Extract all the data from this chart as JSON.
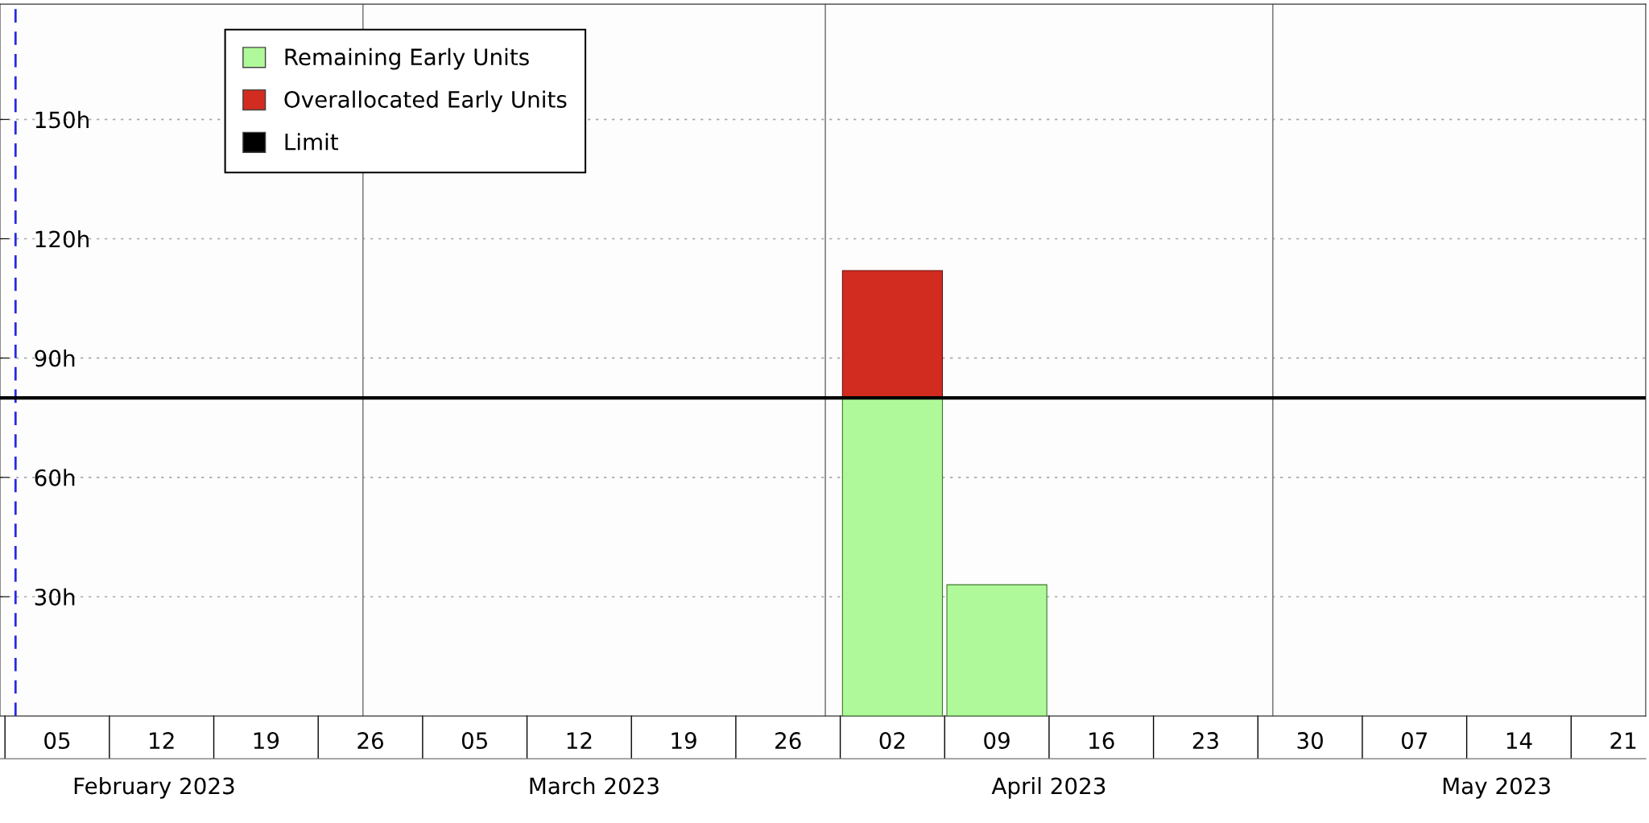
{
  "chart_data": {
    "type": "bar",
    "stacked": true,
    "x": [
      "2023-04-05T12:00",
      "2023-04-12T12:00"
    ],
    "series": [
      {
        "name": "Remaining Early Units",
        "color": "#b0f99a",
        "values": [
          80,
          33
        ]
      },
      {
        "name": "Overallocated Early Units",
        "color": "#d22b1f",
        "values": [
          32,
          null
        ]
      }
    ],
    "ylim": [
      0,
      179
    ],
    "yticks": [
      {
        "value": 30,
        "label": "30h"
      },
      {
        "value": 60,
        "label": "60h"
      },
      {
        "value": 90,
        "label": "90h"
      },
      {
        "value": 120,
        "label": "120h"
      },
      {
        "value": 150,
        "label": "150h"
      }
    ],
    "xlim": [
      "2023-02-04T16:00",
      "2023-05-26"
    ],
    "xticks": [
      {
        "value": "2023-02-08T12:00",
        "label": "05"
      },
      {
        "value": "2023-02-15T12:00",
        "label": "12"
      },
      {
        "value": "2023-02-22T12:00",
        "label": "19"
      },
      {
        "value": "2023-03-01T12:00",
        "label": "26"
      },
      {
        "value": "2023-03-08T12:00",
        "label": "05"
      },
      {
        "value": "2023-03-15T12:00",
        "label": "12"
      },
      {
        "value": "2023-03-22T12:00",
        "label": "19"
      },
      {
        "value": "2023-03-29T12:00",
        "label": "26"
      },
      {
        "value": "2023-04-05T12:00",
        "label": "02"
      },
      {
        "value": "2023-04-12T12:00",
        "label": "09"
      },
      {
        "value": "2023-04-19T12:00",
        "label": "16"
      },
      {
        "value": "2023-04-26T12:00",
        "label": "23"
      },
      {
        "value": "2023-05-03T12:00",
        "label": "30"
      },
      {
        "value": "2023-05-10T12:00",
        "label": "07"
      },
      {
        "value": "2023-05-17T12:00",
        "label": "14"
      },
      {
        "value": "2023-05-24T12:00",
        "label": "21"
      }
    ],
    "x2lim": [
      "2023-02-04T16:00",
      "2023-05-26"
    ],
    "x2ticks": [
      {
        "value": "2023-02-15",
        "label": "February 2023"
      },
      {
        "value": "2023-03-16T12:00",
        "label": "March 2023"
      },
      {
        "value": "2023-04-16",
        "label": "April 2023"
      },
      {
        "value": "2023-05-16",
        "label": "May 2023"
      }
    ],
    "ref_lines": [
      {
        "axis": "y",
        "value": 80,
        "label": "Limit",
        "color": "#000000",
        "line_style": "solid"
      },
      {
        "axis": "x",
        "value": "2023-03-01",
        "color": "#808080",
        "line_style": "solid"
      },
      {
        "axis": "x",
        "value": "2023-04-01",
        "color": "#808080",
        "line_style": "solid"
      },
      {
        "axis": "x",
        "value": "2023-05-01",
        "color": "#808080",
        "line_style": "solid"
      },
      {
        "axis": "x",
        "value": "2023-02-05T17:00",
        "color": "#2a2ae0",
        "line_style": "dashed"
      }
    ],
    "grid": "y",
    "legend": "top left"
  }
}
